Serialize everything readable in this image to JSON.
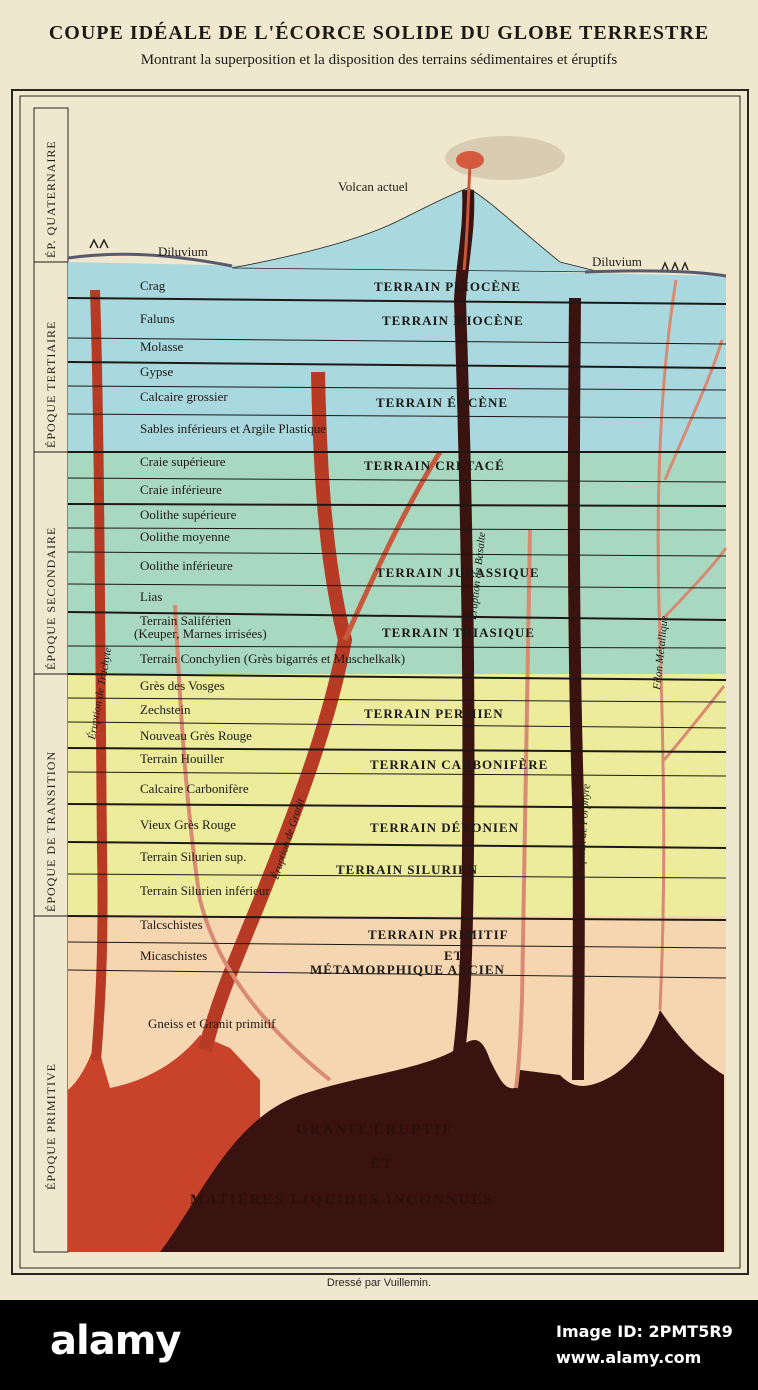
{
  "title": "COUPE IDÉALE DE L'ÉCORCE SOLIDE DU GLOBE TERRESTRE",
  "subtitle": "Montrant la superposition et la disposition des terrains sédimentaires et éruptifs",
  "credit": "Dressé par Vuillemin.",
  "top_labels": {
    "volcano": "Volcan actuel",
    "diluvium_left": "Diluvium",
    "diluvium_right": "Diluvium"
  },
  "epochs": [
    {
      "label": "ÉP. QUATERNAIRE"
    },
    {
      "label": "ÉPOQUE TERTIAIRE"
    },
    {
      "label": "ÉPOQUE SECONDAIRE"
    },
    {
      "label": "ÉPOQUE DE TRANSITION"
    },
    {
      "label": "ÉPOQUE PRIMITIVE"
    }
  ],
  "strata": [
    "Crag",
    "Faluns",
    "Molasse",
    "Gypse",
    "Calcaire grossier",
    "Sables inférieurs et Argile Plastique",
    "Craie supérieure",
    "Craie inférieure",
    "Oolithe supérieure",
    "Oolithe moyenne",
    "Oolithe inférieure",
    "Lias",
    "Terrain Saliférien",
    "(Keuper, Marnes irrisées)",
    "Terrain Conchylien (Grès bigarrés et Muschelkalk)",
    "Grès des Vosges",
    "Zechstein",
    "Nouveau Grès Rouge",
    "Terrain Houiller",
    "Calcaire Carbonifère",
    "Vieux Grès Rouge",
    "Terrain Silurien sup.",
    "Terrain Silurien inférieur",
    "Talcschistes",
    "Micaschistes",
    "Gneiss et Granit primitif"
  ],
  "terrains": [
    "TERRAIN PLIOCÈNE",
    "TERRAIN MIOCÈNE",
    "TERRAIN ÉOCÈNE",
    "TERRAIN CRÉTACÉ",
    "TERRAIN JURASSIQUE",
    "TERRAIN TRIASIQUE",
    "TERRAIN PERMIEN",
    "TERRAIN CARBONIFÈRE",
    "TERRAIN DÉVONIEN",
    "TERRAIN SILURIEN",
    "TERRAIN PRIMITIF",
    "ET",
    "MÉTAMORPHIQUE ANCIEN"
  ],
  "veins": [
    "Éruption de Trachyte",
    "Éruption de Granit",
    "Éruption de Basalte",
    "Éruption de Porphyre",
    "Filon Métallique"
  ],
  "deep": [
    "GRANIT ÉRUPTIF",
    "ET",
    "MATIÈRES LIQUIDES INCONNUES"
  ],
  "colors": {
    "sky": "#efe8cf",
    "tertiary": "#a9d8de",
    "secondary": "#a9d8c0",
    "transition": "#ecec9c",
    "primitive": "#f5d6b1",
    "magma_red": "#c9432a",
    "magma_dark": "#3a1210"
  },
  "watermark": {
    "brand": "alamy",
    "image_id": "Image ID: 2PMT5R9",
    "site": "www.alamy.com"
  }
}
